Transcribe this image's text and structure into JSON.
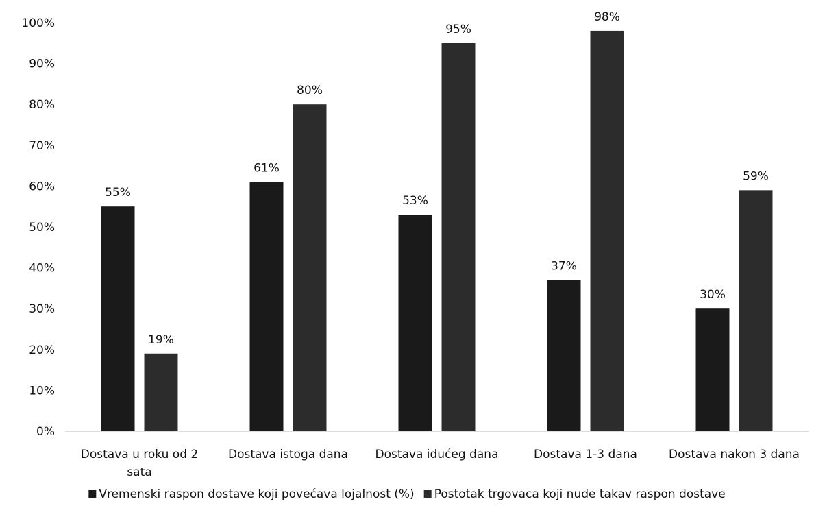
{
  "chart_data": {
    "type": "bar",
    "categories": [
      [
        "Dostava u roku od 2",
        "sata"
      ],
      [
        "Dostava istoga dana"
      ],
      [
        "Dostava idućeg dana"
      ],
      [
        "Dostava 1-3 dana"
      ],
      [
        "Dostava nakon 3 dana"
      ]
    ],
    "series": [
      {
        "name": "Vremenski raspon dostave koji povećava lojalnost (%)",
        "values": [
          55,
          61,
          53,
          37,
          30
        ],
        "labels": [
          "55%",
          "61%",
          "53%",
          "37%",
          "30%"
        ]
      },
      {
        "name": "Postotak trgovaca koji nude takav raspon dostave",
        "values": [
          19,
          80,
          95,
          98,
          59
        ],
        "labels": [
          "19%",
          "80%",
          "95%",
          "98%",
          "59%"
        ]
      }
    ],
    "yticks": [
      "0%",
      "10%",
      "20%",
      "30%",
      "40%",
      "50%",
      "60%",
      "70%",
      "80%",
      "90%",
      "100%"
    ],
    "ylim": [
      0,
      100
    ],
    "legend_position": "bottom",
    "grid": false,
    "colors": {
      "series1": "#1a1a1a",
      "series2": "#2c2c2c",
      "axis": "#bbbbbb",
      "text": "#111111"
    }
  }
}
